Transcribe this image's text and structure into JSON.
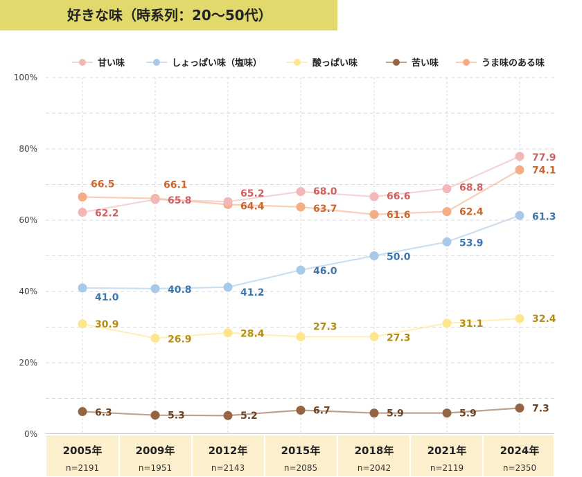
{
  "title": "好きな味（時系列：20〜50代）",
  "chart_data": {
    "type": "line",
    "title": "好きな味（時系列：20〜50代）",
    "categories": [
      "2005年",
      "2009年",
      "2012年",
      "2015年",
      "2018年",
      "2021年",
      "2024年"
    ],
    "sample_sizes": [
      "n=2191",
      "n=1951",
      "n=2143",
      "n=2085",
      "n=2042",
      "n=2119",
      "n=2350"
    ],
    "yticks": [
      "0%",
      "20%",
      "40%",
      "60%",
      "80%",
      "100%"
    ],
    "ylim": [
      0,
      100
    ],
    "grid": true,
    "legend_position": "top",
    "series": [
      {
        "name": "甘い味",
        "values": [
          62.2,
          65.8,
          65.2,
          68.0,
          66.6,
          68.8,
          77.9
        ],
        "color": "#f2b7b7",
        "label_color": "#cf6161"
      },
      {
        "name": "しょっぱい味（塩味）",
        "values": [
          41.0,
          40.8,
          41.2,
          46.0,
          50.0,
          53.9,
          61.3
        ],
        "color": "#a9c9e8",
        "label_color": "#3d76ad"
      },
      {
        "name": "酸っぱい味",
        "values": [
          30.9,
          26.9,
          28.4,
          27.3,
          27.3,
          31.1,
          32.4
        ],
        "color": "#fde68d",
        "label_color": "#b58c12"
      },
      {
        "name": "苦い味",
        "values": [
          6.3,
          5.3,
          5.2,
          6.7,
          5.9,
          5.9,
          7.3
        ],
        "color": "#956543",
        "label_color": "#6b4426"
      },
      {
        "name": "うま味のある味",
        "values": [
          66.5,
          66.1,
          64.4,
          63.7,
          61.6,
          62.4,
          74.1
        ],
        "color": "#f4ad85",
        "label_color": "#c9652d"
      }
    ]
  }
}
